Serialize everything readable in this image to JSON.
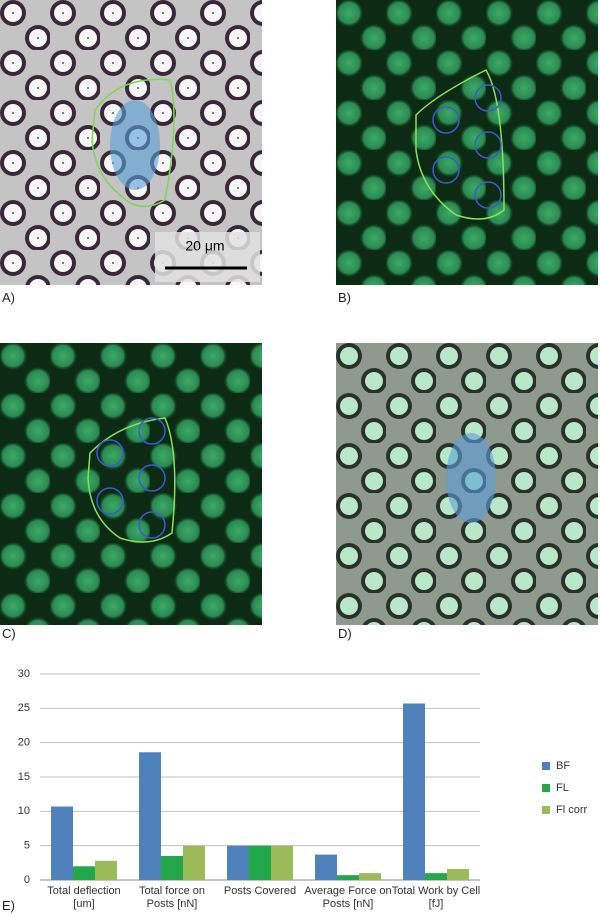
{
  "panels": [
    {
      "label": "A)"
    },
    {
      "label": "B)"
    },
    {
      "label": "C)"
    },
    {
      "label": "D)"
    },
    {
      "label": "E)"
    }
  ],
  "scale_bar": "20 μm",
  "chart_data": {
    "type": "bar",
    "categories": [
      "Total deflection [um]",
      "Total force on Posts [nN]",
      "Posts Covered",
      "Average Force on Posts [nN]",
      "Total Work by Cell [fJ]"
    ],
    "series": [
      {
        "name": "BF",
        "color": "#4f81bd",
        "values": [
          10.7,
          18.6,
          5,
          3.7,
          25.7
        ]
      },
      {
        "name": "FL",
        "color": "#22a84a",
        "values": [
          2.0,
          3.5,
          5,
          0.7,
          1.0
        ]
      },
      {
        "name": "Fl corr",
        "color": "#9bbb59",
        "values": [
          2.8,
          5.0,
          5,
          1.0,
          1.6
        ]
      }
    ],
    "ylim": [
      0,
      30
    ],
    "yticks": [
      0,
      5,
      10,
      15,
      20,
      25,
      30
    ],
    "grid": true,
    "legend": "right"
  }
}
